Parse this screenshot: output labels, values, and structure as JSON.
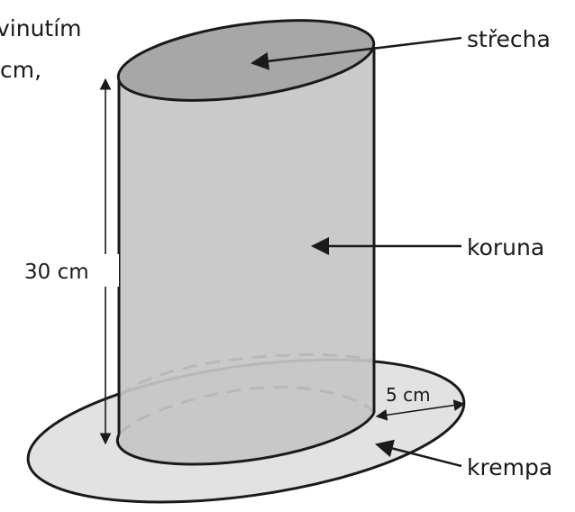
{
  "intro_text": {
    "line1": "vinutím",
    "line2": "cm,"
  },
  "labels": {
    "roof": "střecha",
    "crown": "koruna",
    "brim": "krempa",
    "height": "30 cm",
    "brim_width": "5 cm"
  },
  "colors": {
    "background": "#ffffff",
    "crown_fill": "#c6c6c6",
    "roof_fill": "#a7a7a7",
    "brim_fill": "#e2e2e2",
    "stroke": "#1a1a1a"
  }
}
